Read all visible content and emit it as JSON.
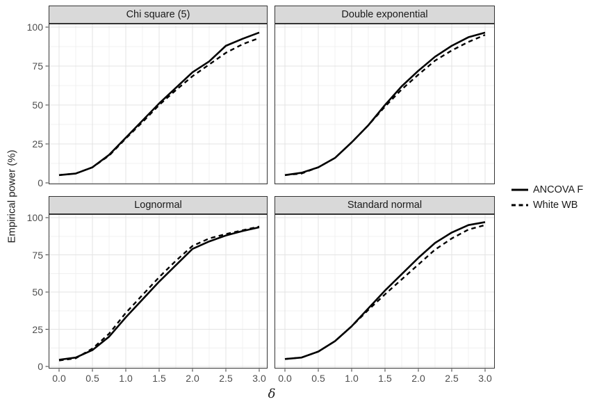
{
  "figure_type": "faceted-line-chart",
  "legend": {
    "position": "right",
    "items": [
      {
        "label": "ANCOVA F",
        "line_style": "solid"
      },
      {
        "label": "White WB",
        "line_style": "dashed"
      }
    ]
  },
  "colors": {
    "line": "#000000",
    "grid_major": "#e3e3e3",
    "grid_minor": "#f0f0f0",
    "panel_border": "#333333",
    "strip_background": "#d9d9d9",
    "axis_text": "#4d4d4d",
    "title_text": "#1a1a1a",
    "background": "#ffffff"
  },
  "chart_data": {
    "type": "line",
    "xlabel": "δ",
    "ylabel": "Empirical power (%)",
    "xlim": [
      0,
      3
    ],
    "ylim": [
      0,
      100
    ],
    "grid": true,
    "legend_position": "right",
    "x": [
      0,
      0.25,
      0.5,
      0.75,
      1.0,
      1.25,
      1.5,
      1.75,
      2.0,
      2.25,
      2.5,
      2.75,
      3.0
    ],
    "x_tick_values": [
      0,
      0.5,
      1.0,
      1.5,
      2.0,
      2.5,
      3.0
    ],
    "x_tick_labels": [
      "0.0",
      "0.5",
      "1.0",
      "1.5",
      "2.0",
      "2.5",
      "3.0"
    ],
    "y_tick_values": [
      0,
      25,
      50,
      75,
      100
    ],
    "y_tick_labels": [
      "0",
      "25",
      "50",
      "75",
      "100"
    ],
    "x_minor_ticks": [
      0.25,
      0.75,
      1.25,
      1.75,
      2.25,
      2.75
    ],
    "y_minor_ticks": [
      12.5,
      37.5,
      62.5,
      87.5
    ],
    "facets": [
      {
        "title": "Chi square (5)",
        "series": [
          {
            "name": "ANCOVA F",
            "style": "solid",
            "values": [
              5,
              6,
              10,
              18,
              29,
              40,
              51,
              61,
              71,
              78,
              88,
              92.5,
              96.5
            ]
          },
          {
            "name": "White WB",
            "style": "dashed",
            "values": [
              5,
              6,
              10,
              17.5,
              28.5,
              39,
              50,
              59.5,
              68.5,
              76,
              83.5,
              89,
              93
            ]
          }
        ]
      },
      {
        "title": "Double exponential",
        "series": [
          {
            "name": "ANCOVA F",
            "style": "solid",
            "values": [
              5,
              6.5,
              10,
              16,
              26,
              37,
              50,
              62,
              72,
              81,
              88,
              93.5,
              96.5
            ]
          },
          {
            "name": "White WB",
            "style": "dashed",
            "values": [
              5,
              6,
              10,
              16,
              26,
              37,
              49,
              60,
              69.5,
              78.5,
              85,
              90.5,
              95
            ]
          }
        ]
      },
      {
        "title": "Lognormal",
        "series": [
          {
            "name": "ANCOVA F",
            "style": "solid",
            "values": [
              4.5,
              6,
              11,
              20,
              33,
              45,
              57,
              68,
              79,
              84,
              88,
              91,
              93.5
            ]
          },
          {
            "name": "White WB",
            "style": "dashed",
            "values": [
              4,
              5.5,
              12,
              22,
              36,
              48,
              60,
              71,
              81,
              86,
              89,
              91.5,
              94
            ]
          }
        ]
      },
      {
        "title": "Standard normal",
        "series": [
          {
            "name": "ANCOVA F",
            "style": "solid",
            "values": [
              5,
              6,
              10,
              17,
              27,
              39,
              51,
              62,
              73,
              83,
              90,
              95,
              97
            ]
          },
          {
            "name": "White WB",
            "style": "dashed",
            "values": [
              5,
              6,
              10,
              17,
              27,
              38,
              48.5,
              58.5,
              68.5,
              78.5,
              86,
              92,
              95
            ]
          }
        ]
      }
    ]
  }
}
